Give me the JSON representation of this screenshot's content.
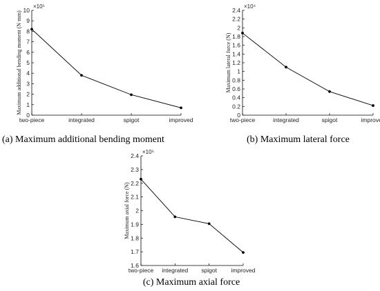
{
  "chart_data": [
    {
      "type": "line",
      "caption": "(a) Maximum additional bending moment",
      "categories": [
        "two-piece",
        "integrated",
        "spigot",
        "improved"
      ],
      "values": [
        8.2,
        3.8,
        1.95,
        0.7
      ],
      "ylabel": "Maximum additional bending moment (N·mm)",
      "multiplier": "×10⁵",
      "ylim": [
        0,
        10
      ],
      "yticks": [
        0,
        1,
        2,
        3,
        4,
        5,
        6,
        7,
        8,
        9,
        10
      ],
      "ytick_labels": [
        "0",
        "1",
        "2",
        "3",
        "4",
        "5",
        "6",
        "7",
        "8",
        "9",
        "10"
      ]
    },
    {
      "type": "line",
      "caption": "(b) Maximum lateral force",
      "categories": [
        "two-piece",
        "integrated",
        "spigot",
        "improved"
      ],
      "values": [
        1.88,
        1.1,
        0.54,
        0.22
      ],
      "ylabel": "Maximum lateral force (N)",
      "multiplier": "×10⁴",
      "ylim": [
        0,
        2.4
      ],
      "yticks": [
        0,
        0.2,
        0.4,
        0.6,
        0.8,
        1,
        1.2,
        1.4,
        1.6,
        1.8,
        2,
        2.2,
        2.4
      ],
      "ytick_labels": [
        "0",
        "0.2",
        "0.4",
        "0.6",
        "0.8",
        "1",
        "1.2",
        "1.4",
        "1.6",
        "1.8",
        "2",
        "2.2",
        "2.4"
      ]
    },
    {
      "type": "line",
      "caption": "(c) Maximum axial force",
      "categories": [
        "two-piece",
        "integrated",
        "spigot",
        "improved"
      ],
      "values": [
        2.23,
        1.955,
        1.905,
        1.695
      ],
      "ylabel": "Maximum axial force (N)",
      "multiplier": "×10⁵",
      "ylim": [
        1.6,
        2.4
      ],
      "yticks": [
        1.6,
        1.7,
        1.8,
        1.9,
        2,
        2.1,
        2.2,
        2.3,
        2.4
      ],
      "ytick_labels": [
        "1.6",
        "1.7",
        "1.8",
        "1.9",
        "2",
        "2.1",
        "2.2",
        "2.3",
        "2.4"
      ]
    }
  ]
}
